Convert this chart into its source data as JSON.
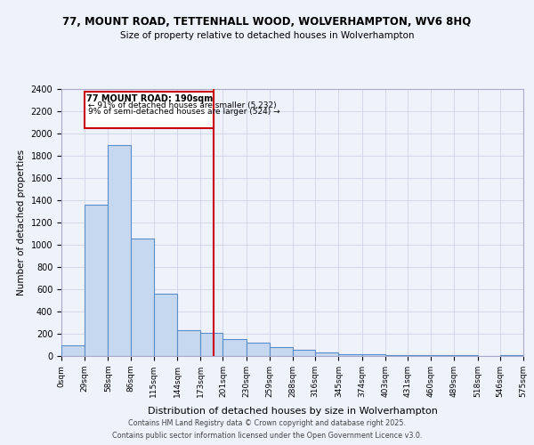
{
  "title1": "77, MOUNT ROAD, TETTENHALL WOOD, WOLVERHAMPTON, WV6 8HQ",
  "title2": "Size of property relative to detached houses in Wolverhampton",
  "xlabel": "Distribution of detached houses by size in Wolverhampton",
  "ylabel": "Number of detached properties",
  "bins": [
    0,
    29,
    58,
    86,
    115,
    144,
    173,
    201,
    230,
    259,
    288,
    316,
    345,
    374,
    403,
    431,
    460,
    489,
    518,
    546,
    575
  ],
  "bin_labels": [
    "0sqm",
    "29sqm",
    "58sqm",
    "86sqm",
    "115sqm",
    "144sqm",
    "173sqm",
    "201sqm",
    "230sqm",
    "259sqm",
    "288sqm",
    "316sqm",
    "345sqm",
    "374sqm",
    "403sqm",
    "431sqm",
    "460sqm",
    "489sqm",
    "518sqm",
    "546sqm",
    "575sqm"
  ],
  "counts": [
    100,
    1360,
    1900,
    1060,
    560,
    230,
    210,
    155,
    120,
    80,
    55,
    30,
    20,
    15,
    10,
    5,
    5,
    5,
    0,
    5
  ],
  "bar_color": "#c5d8f0",
  "bar_edge_color": "#5b8dc8",
  "property_value": 190,
  "vline_color": "#cc0000",
  "annotation_box_color": "#ffffff",
  "annotation_border_color": "#cc0000",
  "annotation_title": "77 MOUNT ROAD: 190sqm",
  "annotation_line1": "← 91% of detached houses are smaller (5,232)",
  "annotation_line2": "9% of semi-detached houses are larger (524) →",
  "ylim": [
    0,
    2400
  ],
  "yticks": [
    0,
    200,
    400,
    600,
    800,
    1000,
    1200,
    1400,
    1600,
    1800,
    2000,
    2200,
    2400
  ],
  "footer1": "Contains HM Land Registry data © Crown copyright and database right 2025.",
  "footer2": "Contains public sector information licensed under the Open Government Licence v3.0.",
  "bg_color": "#eef2fb",
  "plot_bg_color": "#eef2fb",
  "grid_color": "#c8cfe0"
}
